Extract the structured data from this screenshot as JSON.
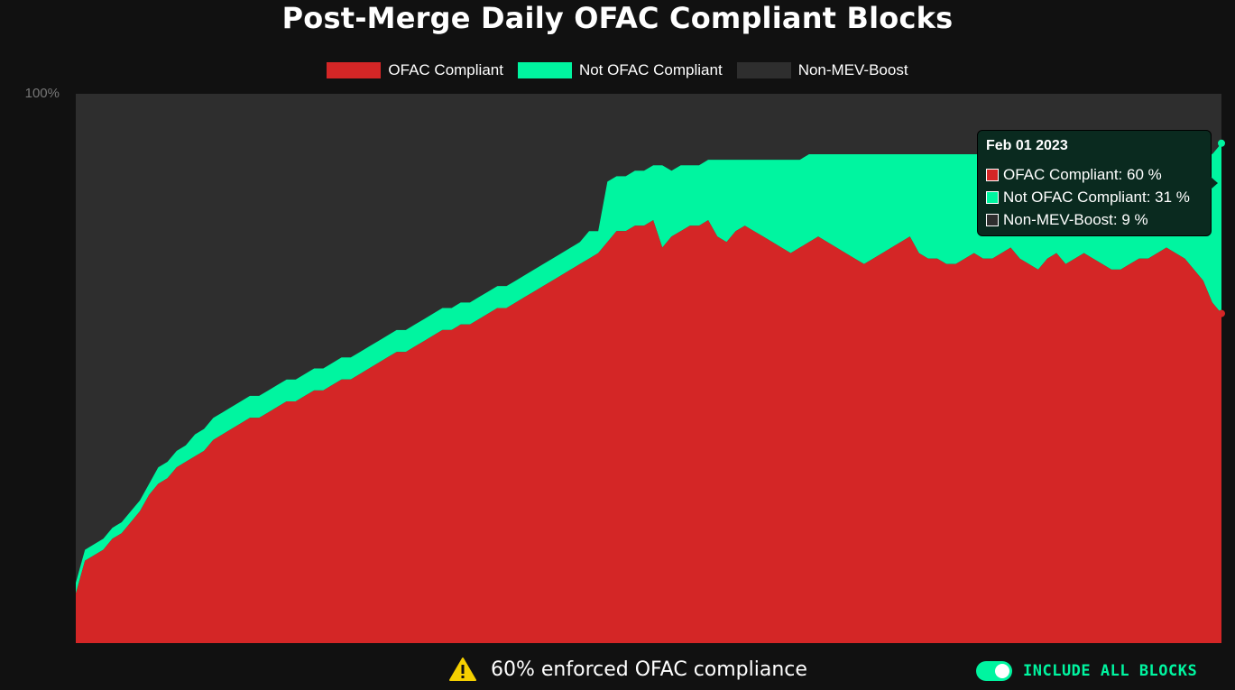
{
  "title": "Post-Merge Daily OFAC Compliant Blocks",
  "legend": [
    {
      "label": "OFAC Compliant",
      "color": "#d42626"
    },
    {
      "label": "Not OFAC Compliant",
      "color": "#00f5a0"
    },
    {
      "label": "Non-MEV-Boost",
      "color": "#2e2e2e"
    }
  ],
  "tooltip": {
    "date": "Feb 01 2023",
    "rows": [
      {
        "label": "OFAC Compliant: 60 %",
        "color": "#d42626"
      },
      {
        "label": "Not OFAC Compliant: 31 %",
        "color": "#00f5a0"
      },
      {
        "label": "Non-MEV-Boost: 9 %",
        "color": "#2e2e2e"
      }
    ]
  },
  "footer": {
    "warning_icon": "warning-triangle-icon",
    "note": "60% enforced OFAC compliance"
  },
  "toggle": {
    "label": "INCLUDE ALL BLOCKS",
    "on": true
  },
  "chart_data": {
    "type": "area",
    "stacked": true,
    "y_tick_labels": [
      "100%"
    ],
    "ylim": [
      0,
      100
    ],
    "grid": false,
    "legend_position": "top-center",
    "colors": {
      "ofac": "#d42626",
      "not_ofac": "#00f5a0",
      "non_mev_boost": "#2e2e2e"
    },
    "series": [
      {
        "name": "OFAC Compliant",
        "values": [
          9,
          15,
          16,
          17,
          19,
          20,
          22,
          24,
          27,
          29,
          30,
          32,
          33,
          34,
          35,
          37,
          38,
          39,
          40,
          41,
          41,
          42,
          43,
          44,
          44,
          45,
          46,
          46,
          47,
          48,
          48,
          49,
          50,
          51,
          52,
          53,
          53,
          54,
          55,
          56,
          57,
          57,
          58,
          58,
          59,
          60,
          61,
          61,
          62,
          63,
          64,
          65,
          66,
          67,
          68,
          69,
          70,
          71,
          73,
          75,
          75,
          76,
          76,
          77,
          72,
          74,
          75,
          76,
          76,
          77,
          74,
          73,
          75,
          76,
          75,
          74,
          73,
          72,
          71,
          72,
          73,
          74,
          73,
          72,
          71,
          70,
          69,
          70,
          71,
          72,
          73,
          74,
          71,
          70,
          70,
          69,
          69,
          70,
          71,
          70,
          70,
          71,
          72,
          70,
          69,
          68,
          70,
          71,
          69,
          70,
          71,
          70,
          69,
          68,
          68,
          69,
          70,
          70,
          71,
          72,
          71,
          70,
          68,
          66,
          62,
          60
        ]
      },
      {
        "name": "Not OFAC Compliant",
        "values": [
          2,
          2,
          2,
          2,
          2,
          2,
          2,
          2,
          2,
          3,
          3,
          3,
          3,
          4,
          4,
          4,
          4,
          4,
          4,
          4,
          4,
          4,
          4,
          4,
          4,
          4,
          4,
          4,
          4,
          4,
          4,
          4,
          4,
          4,
          4,
          4,
          4,
          4,
          4,
          4,
          4,
          4,
          4,
          4,
          4,
          4,
          4,
          4,
          4,
          4,
          4,
          4,
          4,
          4,
          4,
          4,
          5,
          4,
          11,
          10,
          10,
          10,
          10,
          10,
          15,
          12,
          12,
          11,
          11,
          11,
          14,
          15,
          13,
          12,
          13,
          14,
          15,
          16,
          17,
          16,
          16,
          15,
          16,
          17,
          18,
          19,
          20,
          19,
          18,
          17,
          16,
          15,
          18,
          19,
          19,
          20,
          20,
          19,
          18,
          19,
          19,
          18,
          17,
          19,
          20,
          21,
          19,
          18,
          20,
          19,
          18,
          19,
          20,
          21,
          21,
          20,
          20,
          20,
          19,
          18,
          19,
          21,
          22,
          24,
          27,
          31
        ]
      },
      {
        "name": "Non-MEV-Boost",
        "values": [
          89,
          83,
          82,
          81,
          79,
          78,
          76,
          74,
          71,
          68,
          67,
          65,
          64,
          62,
          61,
          59,
          58,
          57,
          56,
          55,
          55,
          54,
          53,
          52,
          52,
          51,
          50,
          50,
          49,
          48,
          48,
          47,
          46,
          45,
          44,
          43,
          43,
          42,
          41,
          40,
          39,
          39,
          38,
          38,
          37,
          36,
          35,
          35,
          34,
          33,
          32,
          31,
          30,
          29,
          28,
          27,
          25,
          25,
          16,
          15,
          15,
          14,
          14,
          13,
          13,
          14,
          13,
          13,
          13,
          12,
          12,
          12,
          12,
          12,
          12,
          12,
          12,
          12,
          12,
          12,
          11,
          11,
          11,
          11,
          11,
          11,
          11,
          11,
          11,
          11,
          11,
          11,
          11,
          11,
          11,
          11,
          11,
          11,
          11,
          11,
          11,
          11,
          11,
          11,
          11,
          11,
          11,
          11,
          11,
          11,
          11,
          11,
          11,
          11,
          11,
          11,
          10,
          10,
          10,
          10,
          10,
          9,
          10,
          10,
          11,
          9
        ]
      }
    ]
  }
}
